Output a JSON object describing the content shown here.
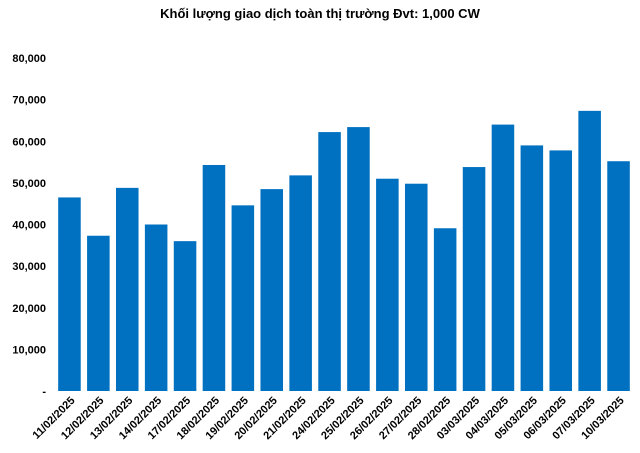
{
  "chart_data": {
    "type": "bar",
    "title": "Khối lượng giao dịch toàn thị trường Đvt: 1,000 CW",
    "xlabel": "",
    "ylabel": "",
    "categories": [
      "11/02/2025",
      "12/02/2025",
      "13/02/2025",
      "14/02/2025",
      "17/02/2025",
      "18/02/2025",
      "19/02/2025",
      "20/02/2025",
      "21/02/2025",
      "24/02/2025",
      "25/02/2025",
      "26/02/2025",
      "27/02/2025",
      "28/02/2025",
      "03/03/2025",
      "04/03/2025",
      "05/03/2025",
      "06/03/2025",
      "07/03/2025",
      "10/03/2025"
    ],
    "values": [
      46500,
      37300,
      48800,
      40000,
      36000,
      54300,
      44600,
      48500,
      51800,
      62200,
      63400,
      51000,
      49800,
      39100,
      53800,
      64000,
      59000,
      57800,
      67300,
      55200
    ],
    "ylim": [
      0,
      80000
    ],
    "yticks": [
      0,
      10000,
      20000,
      30000,
      40000,
      50000,
      60000,
      70000,
      80000
    ],
    "ytick_labels": [
      "-",
      "10,000",
      "20,000",
      "30,000",
      "40,000",
      "50,000",
      "60,000",
      "70,000",
      "80,000"
    ],
    "grid": false,
    "bar_color": "#0070C0"
  }
}
